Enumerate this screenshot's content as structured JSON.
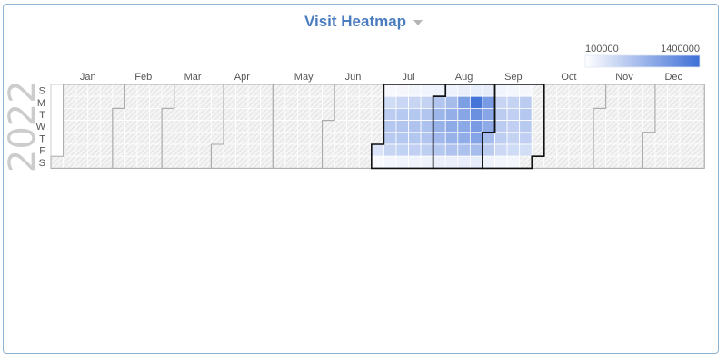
{
  "header": {
    "title": "Visit Heatmap"
  },
  "chart_data": {
    "type": "heatmap",
    "title": "Visit Heatmap",
    "year": "2022",
    "weekday_labels": [
      "S",
      "M",
      "T",
      "W",
      "T",
      "F",
      "S"
    ],
    "months": [
      "Jan",
      "Feb",
      "Mar",
      "Apr",
      "May",
      "Jun",
      "Jul",
      "Aug",
      "Sep",
      "Oct",
      "Nov",
      "Dec"
    ],
    "legend": {
      "min": 100000,
      "max": 1400000,
      "min_label": "100000",
      "max_label": "1400000",
      "placement": "top-right"
    },
    "colors": {
      "low": "#ffffff",
      "high": "#3e6fd6",
      "no_data": "#f1f1f1"
    },
    "highlighted_months": [
      "Jul",
      "Aug",
      "Sep"
    ],
    "days": [
      [
        "2022-07-01",
        350000
      ],
      [
        "2022-07-02",
        150000
      ],
      [
        "2022-07-03",
        160000
      ],
      [
        "2022-07-04",
        420000
      ],
      [
        "2022-07-05",
        560000
      ],
      [
        "2022-07-06",
        610000
      ],
      [
        "2022-07-07",
        580000
      ],
      [
        "2022-07-08",
        480000
      ],
      [
        "2022-07-09",
        180000
      ],
      [
        "2022-07-10",
        170000
      ],
      [
        "2022-07-11",
        460000
      ],
      [
        "2022-07-12",
        590000
      ],
      [
        "2022-07-13",
        620000
      ],
      [
        "2022-07-14",
        600000
      ],
      [
        "2022-07-15",
        510000
      ],
      [
        "2022-07-16",
        200000
      ],
      [
        "2022-07-17",
        190000
      ],
      [
        "2022-07-18",
        480000
      ],
      [
        "2022-07-19",
        600000
      ],
      [
        "2022-07-20",
        640000
      ],
      [
        "2022-07-21",
        610000
      ],
      [
        "2022-07-22",
        520000
      ],
      [
        "2022-07-23",
        210000
      ],
      [
        "2022-07-24",
        200000
      ],
      [
        "2022-07-25",
        500000
      ],
      [
        "2022-07-26",
        620000
      ],
      [
        "2022-07-27",
        660000
      ],
      [
        "2022-07-28",
        630000
      ],
      [
        "2022-07-29",
        540000
      ],
      [
        "2022-07-30",
        220000
      ],
      [
        "2022-07-31",
        210000
      ],
      [
        "2022-08-01",
        620000
      ],
      [
        "2022-08-02",
        760000
      ],
      [
        "2022-08-03",
        800000
      ],
      [
        "2022-08-04",
        740000
      ],
      [
        "2022-08-05",
        600000
      ],
      [
        "2022-08-06",
        240000
      ],
      [
        "2022-08-07",
        230000
      ],
      [
        "2022-08-08",
        700000
      ],
      [
        "2022-08-09",
        820000
      ],
      [
        "2022-08-10",
        860000
      ],
      [
        "2022-08-11",
        800000
      ],
      [
        "2022-08-12",
        640000
      ],
      [
        "2022-08-13",
        250000
      ],
      [
        "2022-08-14",
        250000
      ],
      [
        "2022-08-15",
        980000
      ],
      [
        "2022-08-16",
        900000
      ],
      [
        "2022-08-17",
        880000
      ],
      [
        "2022-08-18",
        840000
      ],
      [
        "2022-08-19",
        660000
      ],
      [
        "2022-08-20",
        260000
      ],
      [
        "2022-08-21",
        260000
      ],
      [
        "2022-08-22",
        1350000
      ],
      [
        "2022-08-23",
        1100000
      ],
      [
        "2022-08-24",
        1000000
      ],
      [
        "2022-08-25",
        920000
      ],
      [
        "2022-08-26",
        700000
      ],
      [
        "2022-08-27",
        270000
      ],
      [
        "2022-08-28",
        270000
      ],
      [
        "2022-08-29",
        1000000
      ],
      [
        "2022-08-30",
        900000
      ],
      [
        "2022-08-31",
        860000
      ],
      [
        "2022-09-01",
        700000
      ],
      [
        "2022-09-02",
        560000
      ],
      [
        "2022-09-03",
        220000
      ],
      [
        "2022-09-04",
        200000
      ],
      [
        "2022-09-05",
        480000
      ],
      [
        "2022-09-06",
        560000
      ],
      [
        "2022-09-07",
        560000
      ],
      [
        "2022-09-08",
        540000
      ],
      [
        "2022-09-09",
        440000
      ],
      [
        "2022-09-10",
        190000
      ],
      [
        "2022-09-11",
        180000
      ],
      [
        "2022-09-12",
        500000
      ],
      [
        "2022-09-13",
        520000
      ],
      [
        "2022-09-14",
        520000
      ],
      [
        "2022-09-15",
        500000
      ],
      [
        "2022-09-16",
        420000
      ],
      [
        "2022-09-17",
        180000
      ],
      [
        "2022-09-18",
        170000
      ],
      [
        "2022-09-19",
        560000
      ],
      [
        "2022-09-20",
        600000
      ],
      [
        "2022-09-21",
        580000
      ],
      [
        "2022-09-22",
        520000
      ],
      [
        "2022-09-23",
        400000
      ]
    ]
  }
}
